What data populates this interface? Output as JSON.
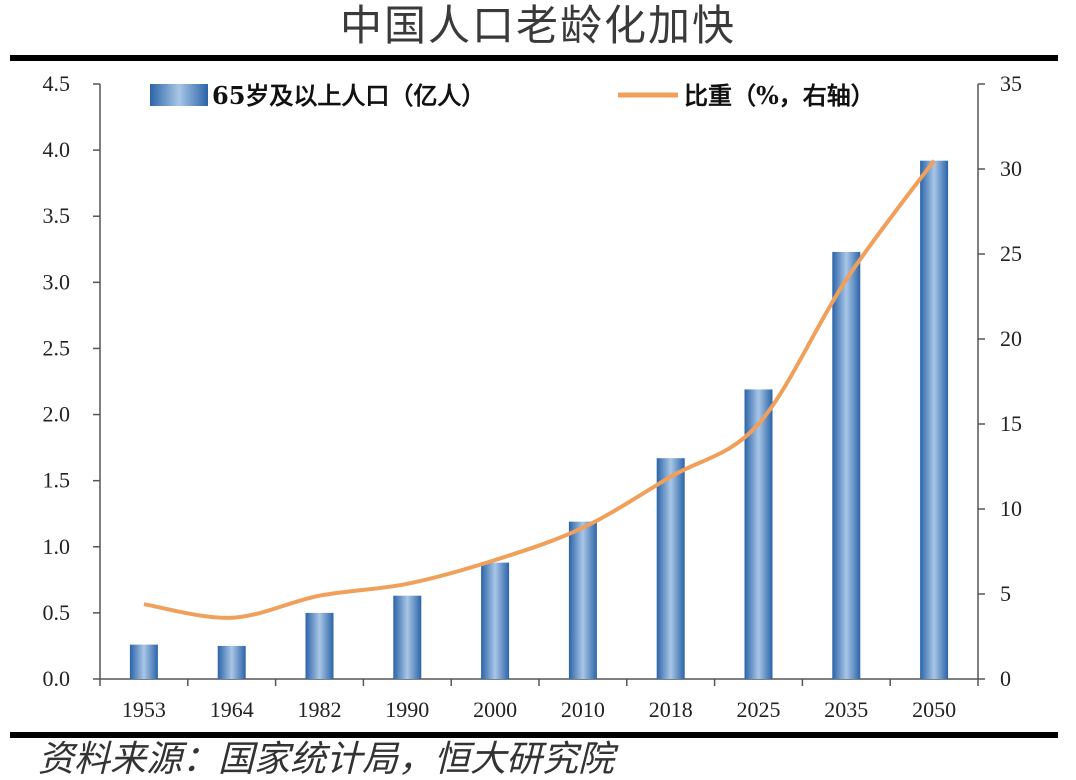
{
  "title": "中国人口老龄化加快",
  "source": "资料来源：国家统计局，恒大研究院",
  "chart_data": {
    "type": "bar",
    "categories": [
      "1953",
      "1964",
      "1982",
      "1990",
      "2000",
      "2010",
      "2018",
      "2025",
      "2035",
      "2050"
    ],
    "series": [
      {
        "name": "65岁及以上人口（亿人）",
        "type": "bar",
        "axis": "left",
        "values": [
          0.26,
          0.25,
          0.5,
          0.63,
          0.88,
          1.19,
          1.67,
          2.19,
          3.23,
          3.92
        ],
        "color": "#3a74b4"
      },
      {
        "name": "比重（%，右轴）",
        "type": "line",
        "axis": "right",
        "values": [
          4.4,
          3.6,
          4.9,
          5.6,
          7.0,
          8.9,
          11.9,
          15.0,
          23.5,
          30.5
        ],
        "color": "#f0a05a"
      }
    ],
    "y_left": {
      "min": 0,
      "max": 4.5,
      "step": 0.5,
      "ticks": [
        "0.0",
        "0.5",
        "1.0",
        "1.5",
        "2.0",
        "2.5",
        "3.0",
        "3.5",
        "4.0",
        "4.5"
      ]
    },
    "y_right": {
      "min": 0,
      "max": 35,
      "step": 5,
      "ticks": [
        "0",
        "5",
        "10",
        "15",
        "20",
        "25",
        "30",
        "35"
      ]
    },
    "grid": false,
    "legend": "top"
  }
}
